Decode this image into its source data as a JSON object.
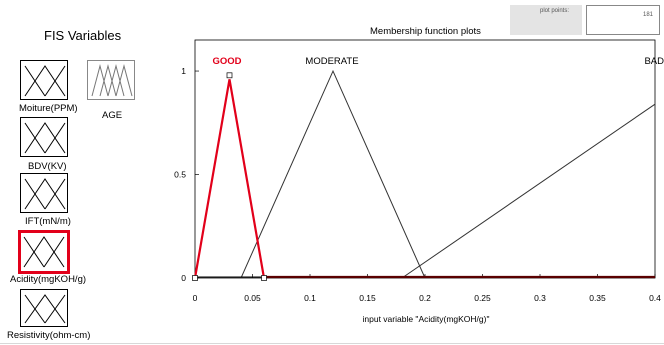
{
  "fis_panel": {
    "title": "FIS Variables",
    "inputs": [
      {
        "label": "Moiture(PPM)"
      },
      {
        "label": "BDV(KV)"
      },
      {
        "label": "IFT(mN/m)"
      },
      {
        "label": "Acidity(mgKOH/g)",
        "selected": true
      },
      {
        "label": "Resistivity(ohm-cm)"
      }
    ],
    "output": {
      "label": "AGE"
    }
  },
  "plot_points": {
    "label": "plot points:",
    "value": "181"
  },
  "mf_plot": {
    "title": "Membership function plots",
    "selected_color": "#e2001a"
  },
  "chart_data": {
    "type": "line",
    "xlabel": "input variable \"Acidity(mgKOH/g)\"",
    "xlim": [
      0,
      0.4
    ],
    "ylim": [
      0,
      1.15
    ],
    "x_ticks": [
      "0",
      "0.05",
      "0.1",
      "0.15",
      "0.2",
      "0.25",
      "0.3",
      "0.35",
      "0.4"
    ],
    "y_ticks": [
      "0",
      "0.5",
      "1"
    ],
    "series": [
      {
        "name": "GOOD",
        "shape": "trimf",
        "color": "#e2001a",
        "selected": true,
        "x": [
          0,
          0.03,
          0.06
        ],
        "y": [
          0,
          0.96,
          0
        ]
      },
      {
        "name": "MODERATE",
        "shape": "trimf",
        "color": "#333333",
        "x": [
          0.04,
          0.12,
          0.2
        ],
        "y": [
          0,
          1,
          0
        ]
      },
      {
        "name": "BAD",
        "shape": "trimf",
        "color": "#333333",
        "x": [
          0.18,
          0.4
        ],
        "y": [
          0,
          0.84
        ]
      }
    ]
  }
}
